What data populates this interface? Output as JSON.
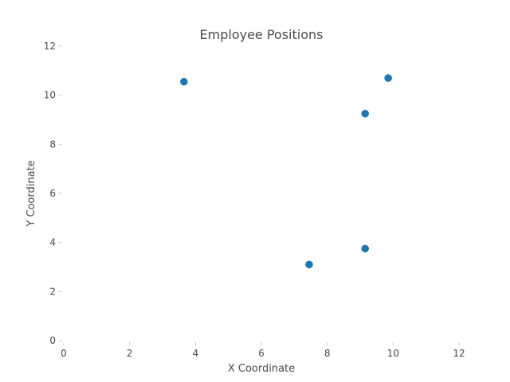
{
  "chart_data": {
    "type": "scatter",
    "title": "Employee Positions",
    "xlabel": "X Coordinate",
    "ylabel": "Y Coordinate",
    "xlim": [
      0,
      12
    ],
    "ylim": [
      0,
      12
    ],
    "x_ticks": [
      0,
      2,
      4,
      6,
      8,
      10,
      12
    ],
    "y_ticks": [
      0,
      2,
      4,
      6,
      8,
      10,
      12
    ],
    "grid": false,
    "series": [
      {
        "color": "#1f77b4",
        "points": [
          {
            "x": 3.65,
            "y": 10.55
          },
          {
            "x": 9.85,
            "y": 10.7
          },
          {
            "x": 9.15,
            "y": 9.25
          },
          {
            "x": 9.15,
            "y": 3.75
          },
          {
            "x": 7.45,
            "y": 3.1
          }
        ]
      }
    ]
  }
}
